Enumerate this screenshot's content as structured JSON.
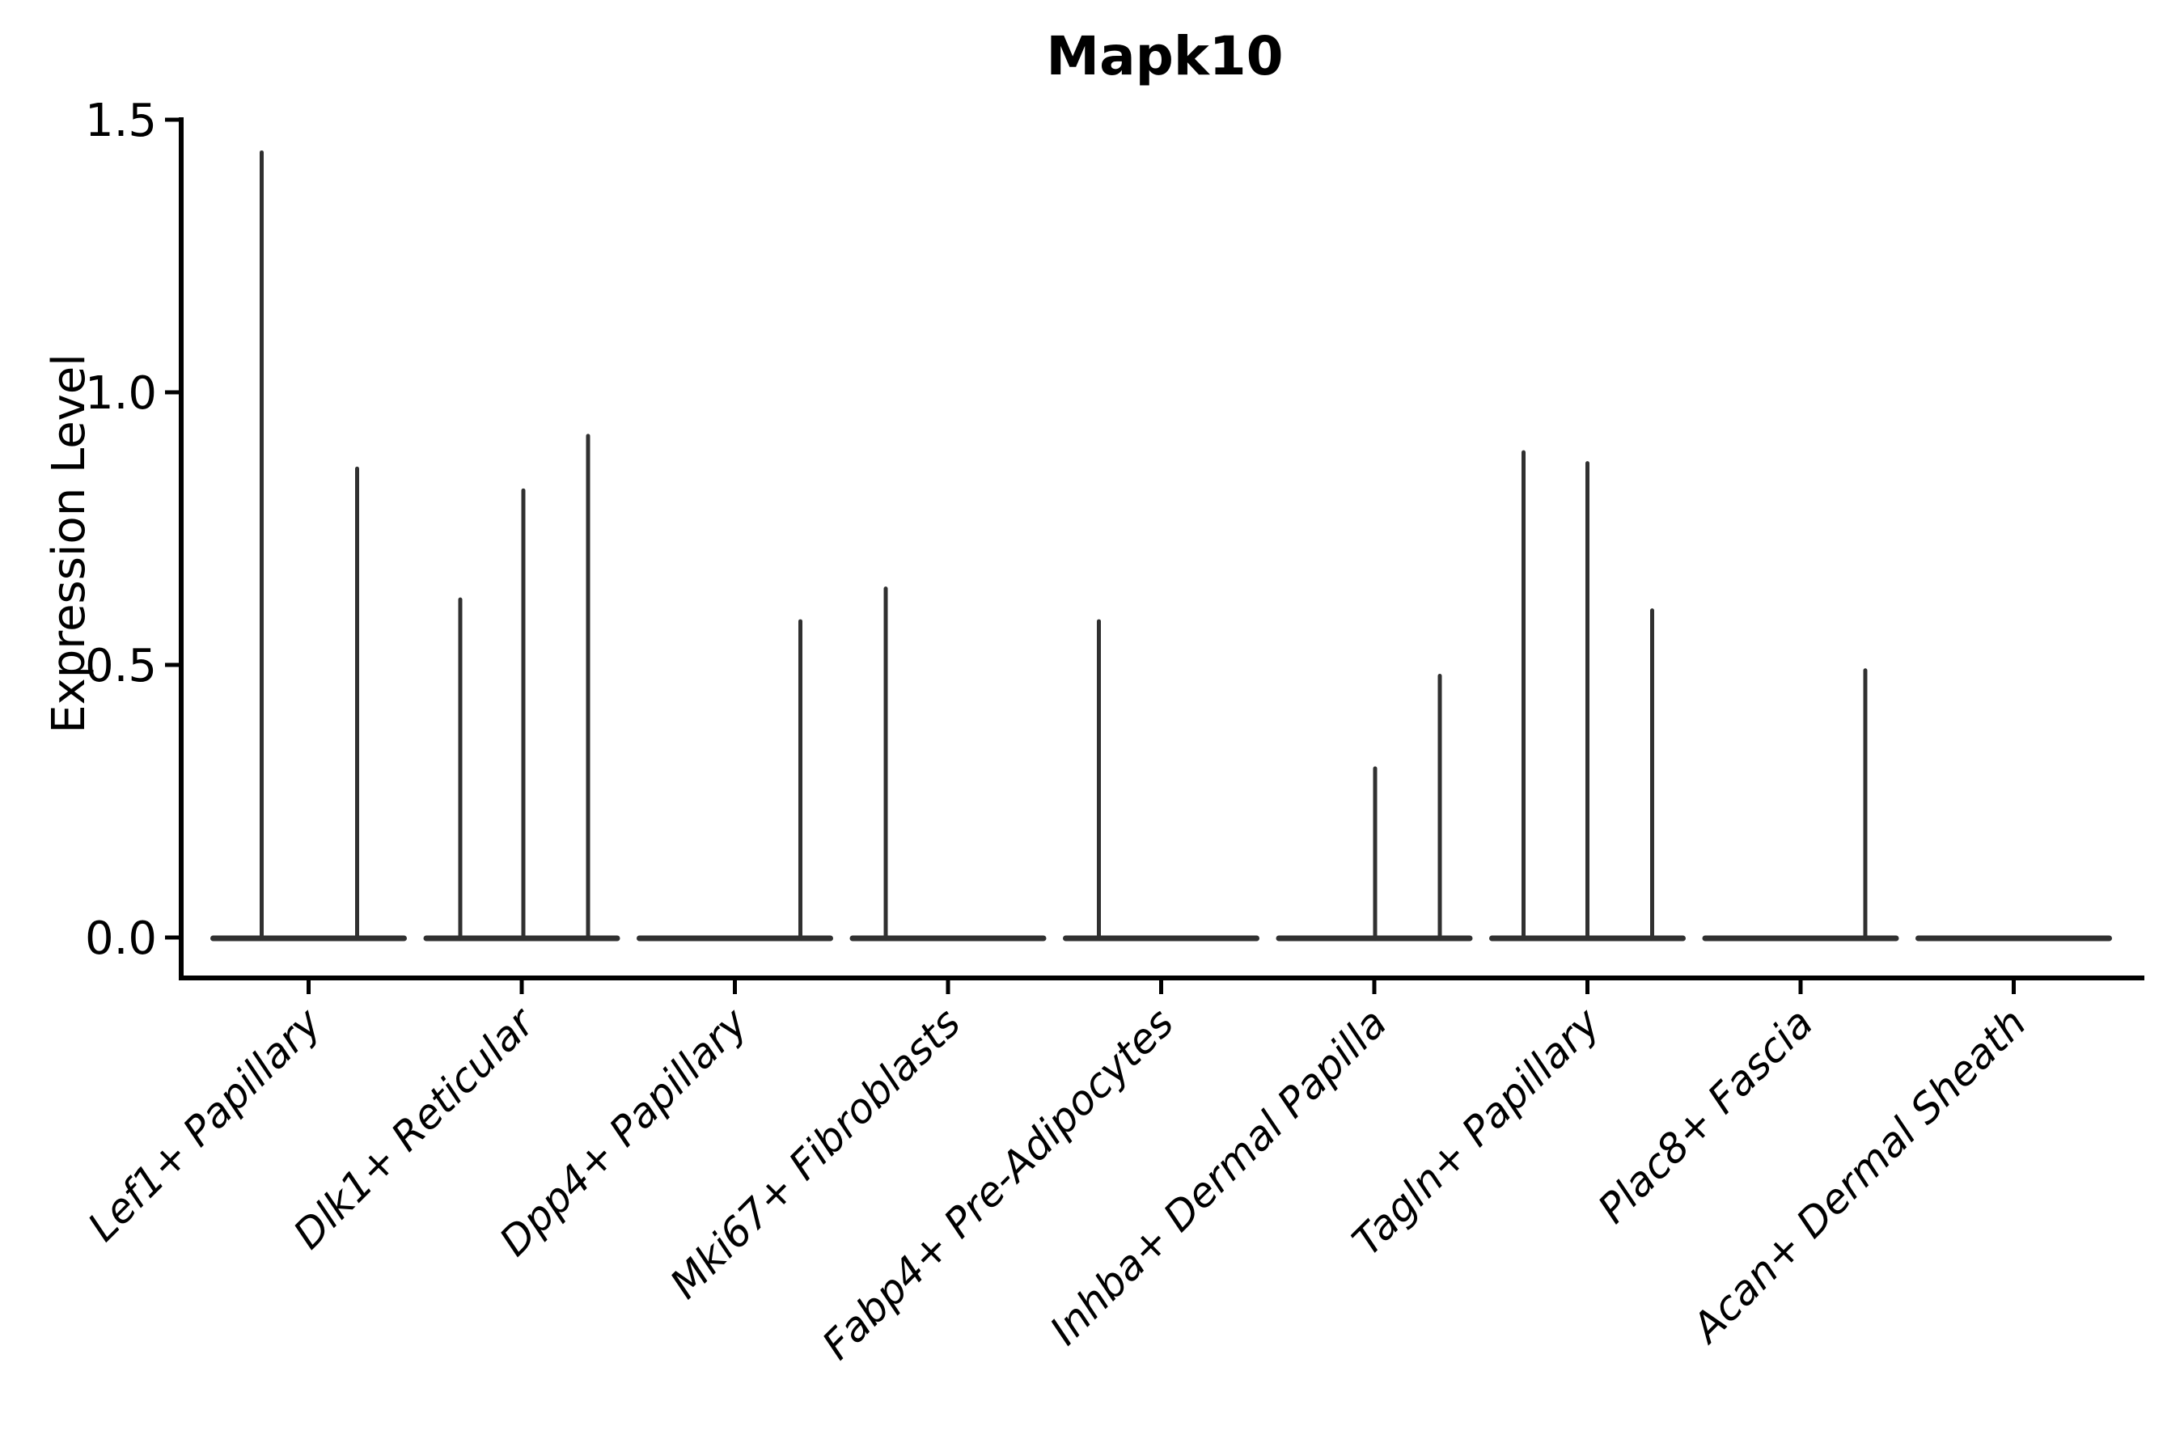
{
  "chart_data": {
    "type": "violin",
    "title": "Mapk10",
    "ylabel": "Expression Level",
    "xlabel": "",
    "ylim": [
      0.0,
      1.5
    ],
    "grid": false,
    "legend": "none",
    "y_ticks": [
      {
        "value": 0.0,
        "label": "0.0"
      },
      {
        "value": 0.5,
        "label": "0.5"
      },
      {
        "value": 1.0,
        "label": "1.0"
      },
      {
        "value": 1.5,
        "label": "1.5"
      }
    ],
    "description": "Violin plot of Mapk10 expression; each cluster shows flat near-zero density with thin spikes whose tops mark the maximum expression level of expressing sub-violins.",
    "categories": [
      {
        "label": "Lef1+ Papillary",
        "spikes": [
          {
            "dx": -58,
            "max": 1.44
          },
          {
            "dx": 60,
            "max": 0.86
          }
        ]
      },
      {
        "label": "Dlk1+ Reticular",
        "spikes": [
          {
            "dx": -76,
            "max": 0.62
          },
          {
            "dx": 2,
            "max": 0.82
          },
          {
            "dx": 82,
            "max": 0.92
          }
        ]
      },
      {
        "label": "Dpp4+ Papillary",
        "spikes": [
          {
            "dx": 81,
            "max": 0.58
          }
        ]
      },
      {
        "label": "Mki67+ Fibroblasts",
        "spikes": [
          {
            "dx": -77,
            "max": 0.64
          }
        ]
      },
      {
        "label": "Fabp4+ Pre-Adipocytes",
        "spikes": [
          {
            "dx": -77,
            "max": 0.58
          }
        ]
      },
      {
        "label": "Inhba+ Dermal Papilla",
        "spikes": [
          {
            "dx": 1,
            "max": 0.31
          },
          {
            "dx": 81,
            "max": 0.48
          }
        ]
      },
      {
        "label": "Tagln+ Papillary",
        "spikes": [
          {
            "dx": -79,
            "max": 0.89
          },
          {
            "dx": 0,
            "max": 0.87
          },
          {
            "dx": 80,
            "max": 0.6
          }
        ]
      },
      {
        "label": "Plac8+ Fascia",
        "spikes": [
          {
            "dx": 80,
            "max": 0.49
          }
        ]
      },
      {
        "label": "Acan+ Dermal Sheath",
        "spikes": []
      }
    ],
    "violin_color": "#303030",
    "axis_color": "#000000",
    "background_color": "#ffffff"
  }
}
